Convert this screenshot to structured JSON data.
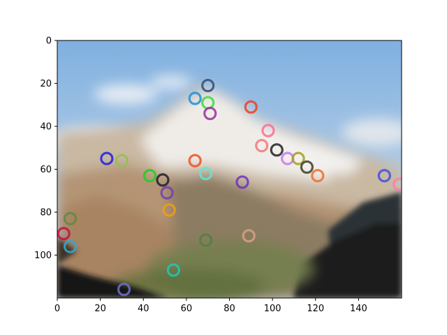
{
  "chart_data": {
    "type": "image",
    "title": "",
    "xlabel": "",
    "ylabel": "",
    "xlim": [
      0,
      160
    ],
    "ylim": [
      120,
      0
    ],
    "grid": false,
    "legend": "none",
    "x_ticks": [
      0,
      20,
      40,
      60,
      80,
      100,
      120,
      140
    ],
    "y_ticks": [
      0,
      20,
      40,
      60,
      80,
      100
    ],
    "x_tick_labels": [
      "0",
      "20",
      "40",
      "60",
      "80",
      "100",
      "120",
      "140"
    ],
    "y_tick_labels": [
      "0",
      "20",
      "40",
      "60",
      "80",
      "100"
    ],
    "background": {
      "description_colors": {
        "sky_top": "#8fb8df",
        "sky_low": "#c8d8e8",
        "snow": "#efeae6",
        "rock_light": "#c8b49a",
        "rock_tan": "#b09070",
        "forest_dark": "#2a2e30",
        "valley_green": "#6e7e48",
        "corner_black": "#0a0a0a"
      }
    },
    "markers": [
      {
        "x": 70,
        "y": 21,
        "color": "#2e4e7e"
      },
      {
        "x": 64,
        "y": 27,
        "color": "#1e90dc"
      },
      {
        "x": 70,
        "y": 29,
        "color": "#3cdc3c"
      },
      {
        "x": 71,
        "y": 34,
        "color": "#9e2e9e"
      },
      {
        "x": 90,
        "y": 31,
        "color": "#f04020"
      },
      {
        "x": 98,
        "y": 42,
        "color": "#ff6e8e"
      },
      {
        "x": 95,
        "y": 49,
        "color": "#f07878"
      },
      {
        "x": 102,
        "y": 51,
        "color": "#222222"
      },
      {
        "x": 107,
        "y": 55,
        "color": "#c878f0"
      },
      {
        "x": 112,
        "y": 55,
        "color": "#a0a020"
      },
      {
        "x": 116,
        "y": 59,
        "color": "#3e3e28"
      },
      {
        "x": 121,
        "y": 63,
        "color": "#f06e2e"
      },
      {
        "x": 152,
        "y": 63,
        "color": "#4050e0"
      },
      {
        "x": 159,
        "y": 67,
        "color": "#ff7ea0"
      },
      {
        "x": 23,
        "y": 55,
        "color": "#2020e0"
      },
      {
        "x": 30,
        "y": 56,
        "color": "#90c050"
      },
      {
        "x": 64,
        "y": 56,
        "color": "#f05020"
      },
      {
        "x": 69,
        "y": 62,
        "color": "#60e8d0"
      },
      {
        "x": 43,
        "y": 63,
        "color": "#22cc22"
      },
      {
        "x": 49,
        "y": 65,
        "color": "#1e1e2e"
      },
      {
        "x": 51,
        "y": 71,
        "color": "#7040b0"
      },
      {
        "x": 86,
        "y": 66,
        "color": "#7030c0"
      },
      {
        "x": 52,
        "y": 79,
        "color": "#f0a010"
      },
      {
        "x": 6,
        "y": 83,
        "color": "#608840"
      },
      {
        "x": 3,
        "y": 90,
        "color": "#c0104e"
      },
      {
        "x": 6,
        "y": 96,
        "color": "#30a8d8"
      },
      {
        "x": 69,
        "y": 93,
        "color": "#508040"
      },
      {
        "x": 89,
        "y": 91,
        "color": "#d8a080"
      },
      {
        "x": 54,
        "y": 107,
        "color": "#20c8b8"
      },
      {
        "x": 31,
        "y": 116,
        "color": "#7070d0"
      }
    ]
  }
}
